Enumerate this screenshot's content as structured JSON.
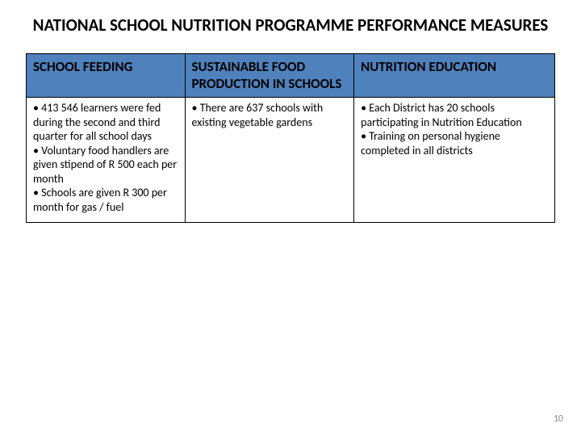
{
  "title": "NATIONAL SCHOOL NUTRITION PROGRAMME PERFORMANCE MEASURES",
  "table": {
    "headers": {
      "c0": "SCHOOL FEEDING",
      "c1": "SUSTAINABLE FOOD PRODUCTION IN SCHOOLS",
      "c2": "NUTRITION EDUCATION"
    },
    "row": {
      "c0": {
        "l0": "• 413 546 learners were fed during the second and third quarter for all school days",
        "l1": "• Voluntary food handlers are given stipend of R 500 each per month",
        "l2": "• Schools are given R 300 per month for gas / fuel"
      },
      "c1": {
        "l0": "• There are 637 schools with existing vegetable gardens"
      },
      "c2": {
        "l0": "• Each District has 20 schools participating in Nutrition Education",
        "l1": "• Training on personal hygiene completed in all districts"
      }
    }
  },
  "page_number": "10",
  "colors": {
    "header_bg": "#4f81bd",
    "text": "#000000",
    "page_num": "#888888",
    "bg": "#ffffff"
  }
}
